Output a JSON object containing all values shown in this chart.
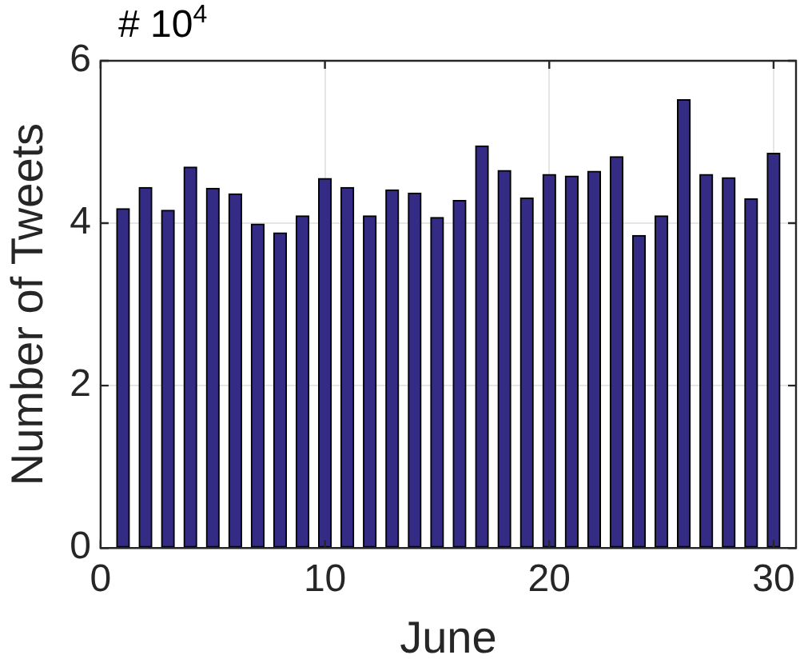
{
  "chart_data": {
    "type": "bar",
    "xlabel": "June",
    "ylabel": "Number of Tweets",
    "annotations": [
      "# 10$^{4}$"
    ],
    "x": [
      1,
      2,
      3,
      4,
      5,
      6,
      7,
      8,
      9,
      10,
      11,
      12,
      13,
      14,
      15,
      16,
      17,
      18,
      19,
      20,
      21,
      22,
      23,
      24,
      25,
      26,
      27,
      28,
      29,
      30
    ],
    "values": [
      4.18,
      4.44,
      4.16,
      4.69,
      4.43,
      4.36,
      3.99,
      3.88,
      4.09,
      4.55,
      4.44,
      4.09,
      4.41,
      4.37,
      4.07,
      4.28,
      4.95,
      4.65,
      4.31,
      4.6,
      4.58,
      4.64,
      4.82,
      3.85,
      4.09,
      5.52,
      4.6,
      4.56,
      4.3,
      4.86
    ],
    "color": "#342c84",
    "xlim": [
      0,
      31
    ],
    "xticks": [
      0,
      10,
      20,
      30
    ],
    "ylim": [
      0,
      6
    ],
    "yticks": [
      0,
      2,
      4,
      6
    ],
    "grid": true
  }
}
